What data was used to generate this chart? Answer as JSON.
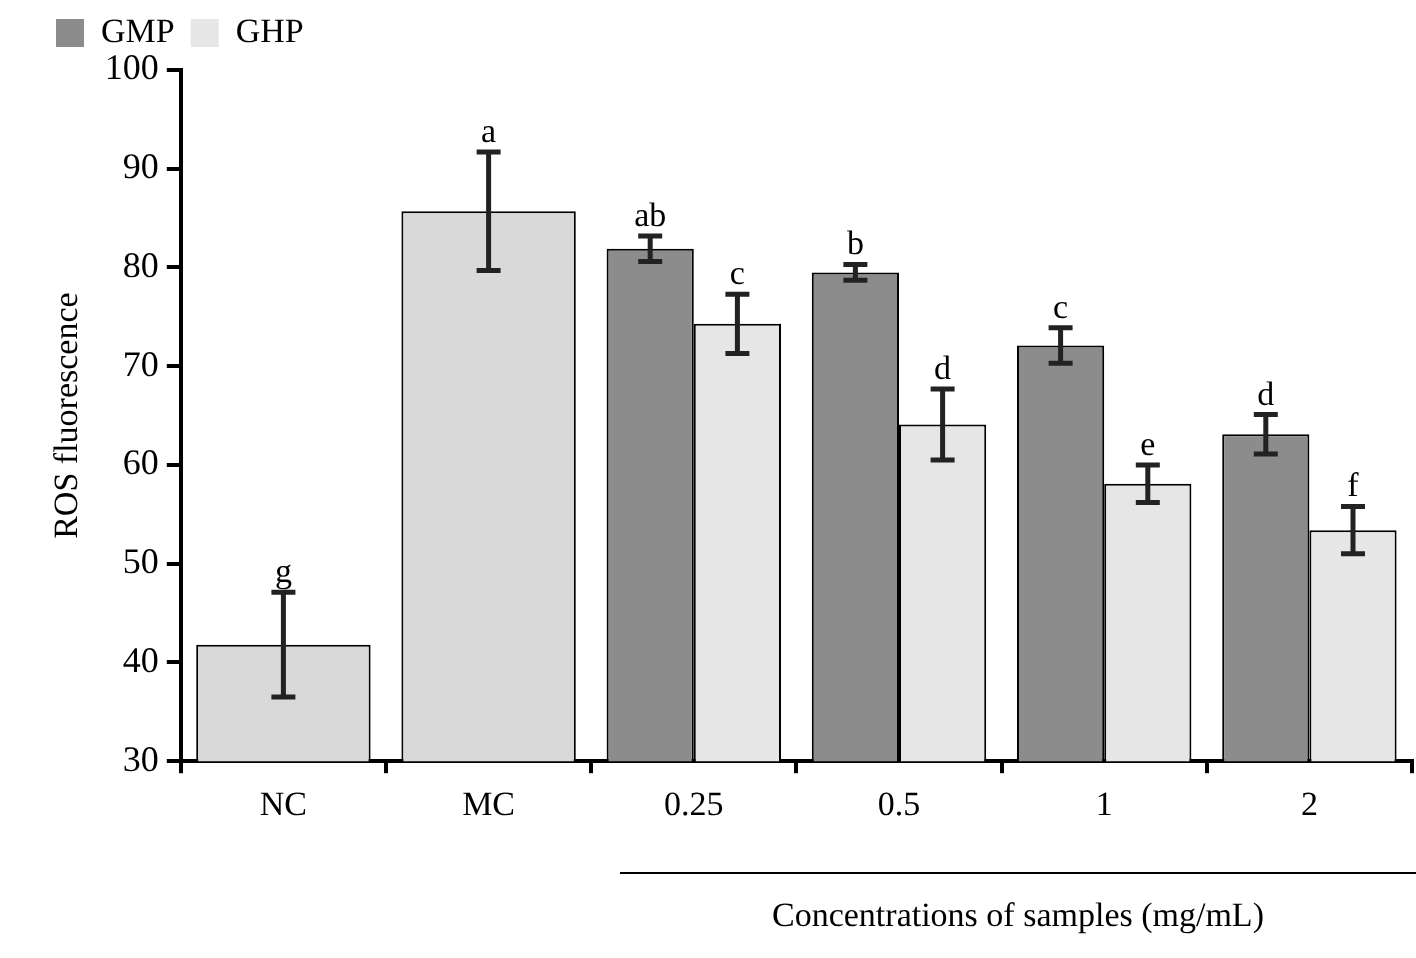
{
  "chart_data": {
    "type": "bar",
    "ylabel": "ROS fluorescence",
    "xlabel": "Concentrations of samples (mg/mL)",
    "categories": [
      "NC",
      "MC",
      "0.25",
      "0.5",
      "1",
      "2"
    ],
    "series": [
      {
        "color": "#d9d9d9",
        "values": [
          41.8,
          85.7,
          null,
          null,
          null,
          null
        ],
        "errors": [
          5.3,
          6.0,
          null,
          null,
          null,
          null
        ],
        "value_labels": [
          "g",
          "a",
          null,
          null,
          null,
          null
        ]
      },
      {
        "name": "GMP",
        "color": "#8c8c8c",
        "values": [
          null,
          null,
          81.9,
          79.5,
          72.1,
          63.1
        ],
        "errors": [
          null,
          null,
          1.3,
          0.8,
          1.8,
          2.0
        ],
        "value_labels": [
          null,
          null,
          "ab",
          "b",
          "c",
          "d"
        ]
      },
      {
        "name": "GHP",
        "color": "#e6e6e6",
        "values": [
          null,
          null,
          74.3,
          64.1,
          58.1,
          53.4
        ],
        "errors": [
          null,
          null,
          3.0,
          3.6,
          1.9,
          2.4
        ],
        "value_labels": [
          null,
          null,
          "c",
          "d",
          "e",
          "f"
        ]
      }
    ],
    "ylim": [
      30,
      100
    ],
    "yticks": [
      30,
      40,
      50,
      60,
      70,
      80,
      90,
      100
    ],
    "grid": false,
    "legend": "top left"
  }
}
